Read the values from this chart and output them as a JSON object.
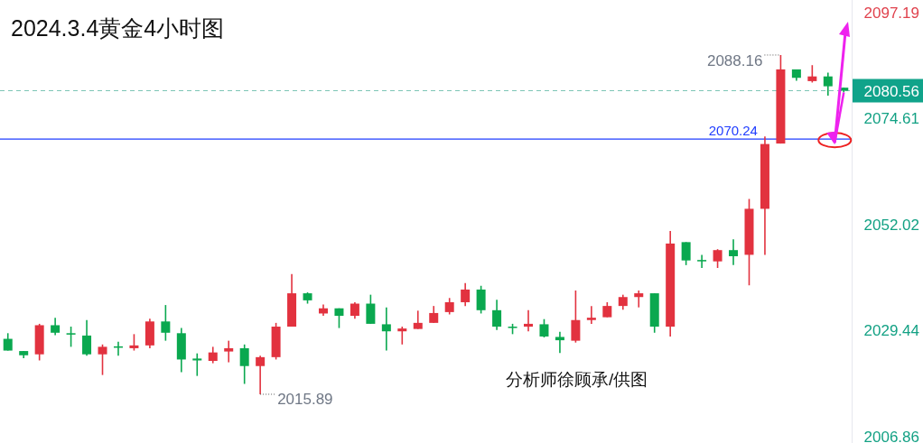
{
  "chart_data": {
    "type": "candlestick",
    "title": "2024.3.4黄金4小时图",
    "categories": [
      null,
      null,
      null,
      null,
      null,
      null,
      null,
      null,
      null,
      null,
      null,
      null,
      null,
      null,
      null,
      null,
      null,
      null,
      null,
      null,
      null,
      null,
      null,
      null,
      null,
      null,
      null,
      null,
      null,
      null,
      null,
      null,
      null,
      null,
      null,
      null,
      null,
      null,
      null,
      null,
      null,
      null,
      null,
      null,
      null,
      null,
      null,
      null,
      null,
      null,
      null,
      null,
      null,
      null
    ],
    "ohlc": [
      [
        2027.7,
        2028.9,
        2025.2,
        2025.2
      ],
      [
        2025.1,
        2025.1,
        2023.6,
        2024.2
      ],
      [
        2024.4,
        2030.9,
        2023.1,
        2030.6
      ],
      [
        2030.6,
        2032.2,
        2028.5,
        2029.0
      ],
      [
        2028.9,
        2030.3,
        2026.0,
        2028.6
      ],
      [
        2028.4,
        2031.7,
        2024.1,
        2024.4
      ],
      [
        2024.4,
        2026.5,
        2020.0,
        2026.0
      ],
      [
        2026.1,
        2027.1,
        2024.1,
        2025.8
      ],
      [
        2025.7,
        2028.7,
        2025.2,
        2026.3
      ],
      [
        2026.3,
        2032.0,
        2025.7,
        2031.4
      ],
      [
        2031.4,
        2034.9,
        2027.3,
        2029.0
      ],
      [
        2028.9,
        2030.0,
        2020.6,
        2023.3
      ],
      [
        2023.5,
        2024.6,
        2019.8,
        2023.1
      ],
      [
        2023.0,
        2026.0,
        2022.5,
        2024.8
      ],
      [
        2025.0,
        2027.3,
        2022.7,
        2025.7
      ],
      [
        2025.7,
        2026.5,
        2018.1,
        2021.9
      ],
      [
        2021.9,
        2024.1,
        2015.89,
        2023.8
      ],
      [
        2023.8,
        2031.1,
        2023.3,
        2030.3
      ],
      [
        2030.3,
        2041.5,
        2030.3,
        2037.4
      ],
      [
        2037.4,
        2037.6,
        2035.2,
        2035.9
      ],
      [
        2033.1,
        2035.0,
        2032.6,
        2034.2
      ],
      [
        2034.2,
        2034.2,
        2030.0,
        2032.6
      ],
      [
        2032.6,
        2035.5,
        2032.0,
        2035.2
      ],
      [
        2035.2,
        2037.1,
        2030.9,
        2030.9
      ],
      [
        2030.8,
        2034.4,
        2025.2,
        2029.3
      ],
      [
        2029.3,
        2030.3,
        2026.5,
        2029.9
      ],
      [
        2029.8,
        2033.7,
        2029.8,
        2031.1
      ],
      [
        2031.1,
        2034.7,
        2031.1,
        2033.2
      ],
      [
        2033.4,
        2036.4,
        2032.9,
        2035.5
      ],
      [
        2035.5,
        2039.6,
        2034.7,
        2038.2
      ],
      [
        2038.2,
        2039.0,
        2033.1,
        2033.8
      ],
      [
        2033.8,
        2036.0,
        2029.6,
        2030.3
      ],
      [
        2030.3,
        2030.9,
        2028.7,
        2030.2
      ],
      [
        2030.3,
        2033.8,
        2029.3,
        2030.9
      ],
      [
        2030.8,
        2031.9,
        2028.0,
        2028.2
      ],
      [
        2028.1,
        2029.2,
        2024.7,
        2027.4
      ],
      [
        2027.3,
        2038.0,
        2026.9,
        2031.7
      ],
      [
        2031.7,
        2034.7,
        2030.9,
        2032.2
      ],
      [
        2032.3,
        2035.5,
        2032.3,
        2034.7
      ],
      [
        2034.7,
        2037.1,
        2033.9,
        2036.6
      ],
      [
        2036.6,
        2038.0,
        2034.4,
        2037.4
      ],
      [
        2037.4,
        2037.4,
        2029.0,
        2030.3
      ],
      [
        2030.3,
        2050.7,
        2028.2,
        2048.0
      ],
      [
        2048.3,
        2048.3,
        2043.4,
        2044.4
      ],
      [
        2044.5,
        2045.6,
        2042.8,
        2044.2
      ],
      [
        2044.2,
        2046.8,
        2042.8,
        2046.6
      ],
      [
        2046.6,
        2048.9,
        2043.4,
        2045.3
      ],
      [
        2045.6,
        2057.5,
        2039.1,
        2055.4
      ],
      [
        2055.4,
        2070.8,
        2045.6,
        2069.2
      ],
      [
        2069.3,
        2088.16,
        2069.3,
        2085.1
      ],
      [
        2085.1,
        2085.1,
        2082.7,
        2083.3
      ],
      [
        2082.6,
        2086.0,
        2082.3,
        2083.6
      ],
      [
        2083.6,
        2084.4,
        2079.5,
        2081.5
      ],
      [
        2081.2,
        2081.2,
        2080.2,
        2080.56
      ]
    ],
    "ylim": [
      2005.51,
      2099.88
    ],
    "yticks": [
      2097.19,
      2074.61,
      2052.02,
      2029.44,
      2006.86
    ],
    "tick_labels": "y",
    "grid": false,
    "ref_lines": [
      {
        "axis": "y",
        "value": 2080.56,
        "label": "2080.56",
        "color": "#7cc6b5",
        "line_style": "dashed"
      },
      {
        "axis": "y",
        "value": 2070.24,
        "label": "2070.24",
        "color": "#1f3cff",
        "line_style": "solid"
      }
    ],
    "annotations": [
      "2088.16",
      "2015.89",
      "分析师徐顾承/供图"
    ]
  }
}
